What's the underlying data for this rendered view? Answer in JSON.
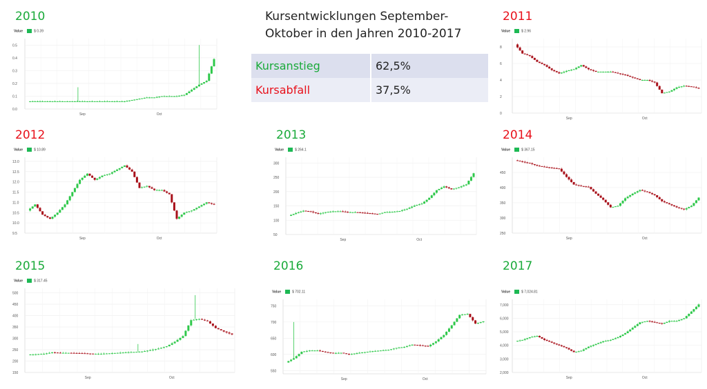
{
  "header": {
    "title_line1": "Kursentwicklungen September-",
    "title_line2": "Oktober in den Jahren 2010-2017"
  },
  "stats": [
    {
      "label": "Kursanstieg",
      "value": "62,5%",
      "color": "#1aaa3a"
    },
    {
      "label": "Kursabfall",
      "value": "37,5%",
      "color": "#e8101a"
    }
  ],
  "colors": {
    "up": "#2ec84a",
    "down": "#a8101a",
    "rise_label": "#1aaa3a",
    "fall_label": "#e8101a"
  },
  "legend_label": "Value",
  "months": [
    "Sep",
    "Oct"
  ],
  "chart_data": [
    {
      "type": "candlestick",
      "year": "2010",
      "trend": "up",
      "current": "$ 0.39",
      "yticks": [
        "0.0",
        "0.1",
        "0.2",
        "0.3",
        "0.4",
        "0.5"
      ],
      "ylim": [
        0,
        0.55
      ],
      "x": [
        0,
        4,
        8,
        12,
        16,
        20,
        24,
        28,
        32,
        36,
        40,
        44,
        48,
        52,
        56,
        60,
        64,
        68,
        72,
        76,
        80,
        84,
        88,
        92,
        96,
        100
      ],
      "y": [
        0.06,
        0.06,
        0.06,
        0.06,
        0.06,
        0.06,
        0.06,
        0.06,
        0.06,
        0.06,
        0.06,
        0.06,
        0.06,
        0.06,
        0.07,
        0.08,
        0.09,
        0.09,
        0.1,
        0.1,
        0.1,
        0.11,
        0.15,
        0.19,
        0.22,
        0.39
      ],
      "spikes": [
        {
          "x": 27,
          "value": 0.17
        },
        {
          "x": 92,
          "value": 0.5
        }
      ]
    },
    {
      "type": "candlestick",
      "year": "2011",
      "trend": "down",
      "current": "$ 2.96",
      "yticks": [
        "0",
        "2",
        "4",
        "6",
        "8"
      ],
      "ylim": [
        0,
        9
      ],
      "x": [
        0,
        4,
        8,
        12,
        16,
        20,
        24,
        28,
        32,
        36,
        40,
        44,
        48,
        52,
        56,
        60,
        64,
        68,
        72,
        76,
        80,
        84,
        88,
        92,
        96,
        100
      ],
      "y": [
        8.3,
        7.2,
        6.9,
        6.2,
        5.8,
        5.2,
        4.8,
        5.1,
        5.3,
        5.8,
        5.3,
        5.0,
        5.0,
        5.0,
        4.8,
        4.6,
        4.3,
        4.0,
        4.0,
        3.7,
        2.4,
        2.6,
        3.1,
        3.3,
        3.2,
        2.96
      ]
    },
    {
      "type": "candlestick",
      "year": "2012",
      "trend": "down",
      "current": "$ 10.89",
      "yticks": [
        "9.5",
        "10.0",
        "10.5",
        "11.0",
        "11.5",
        "12.0",
        "12.5",
        "13.0"
      ],
      "ylim": [
        9.5,
        13.2
      ],
      "x": [
        0,
        4,
        8,
        12,
        16,
        20,
        24,
        28,
        32,
        36,
        40,
        44,
        48,
        52,
        56,
        60,
        64,
        68,
        72,
        76,
        80,
        84,
        88,
        92,
        96,
        100
      ],
      "y": [
        10.6,
        10.9,
        10.4,
        10.2,
        10.5,
        10.9,
        11.5,
        12.1,
        12.4,
        12.1,
        12.3,
        12.4,
        12.6,
        12.8,
        12.5,
        11.7,
        11.8,
        11.6,
        11.6,
        11.4,
        10.2,
        10.5,
        10.6,
        10.8,
        11.0,
        10.89
      ]
    },
    {
      "type": "candlestick",
      "year": "2013",
      "trend": "up",
      "current": "$ 264.1",
      "yticks": [
        "50",
        "100",
        "150",
        "200",
        "250",
        "300"
      ],
      "ylim": [
        50,
        320
      ],
      "x": [
        0,
        4,
        8,
        12,
        16,
        20,
        24,
        28,
        32,
        36,
        40,
        44,
        48,
        52,
        56,
        60,
        64,
        68,
        72,
        76,
        80,
        84,
        88,
        92,
        96,
        100
      ],
      "y": [
        115,
        125,
        133,
        130,
        122,
        128,
        131,
        131,
        128,
        128,
        126,
        124,
        121,
        128,
        129,
        132,
        140,
        151,
        158,
        178,
        205,
        218,
        208,
        215,
        225,
        264
      ]
    },
    {
      "type": "candlestick",
      "year": "2014",
      "trend": "down",
      "current": "$ 367.15",
      "yticks": [
        "250",
        "300",
        "350",
        "400",
        "450"
      ],
      "ylim": [
        250,
        500
      ],
      "x": [
        0,
        4,
        8,
        12,
        16,
        20,
        24,
        28,
        32,
        36,
        40,
        44,
        48,
        52,
        56,
        60,
        64,
        68,
        72,
        76,
        80,
        84,
        88,
        92,
        96,
        100
      ],
      "y": [
        490,
        485,
        480,
        472,
        468,
        465,
        462,
        435,
        410,
        405,
        402,
        380,
        360,
        335,
        340,
        365,
        380,
        392,
        385,
        375,
        355,
        345,
        335,
        328,
        340,
        367
      ]
    },
    {
      "type": "candlestick",
      "year": "2015",
      "trend": "up",
      "current": "$ 317.45",
      "yticks": [
        "150",
        "200",
        "250",
        "300",
        "350",
        "400",
        "450",
        "500"
      ],
      "ylim": [
        150,
        520
      ],
      "x": [
        0,
        4,
        8,
        12,
        16,
        20,
        24,
        28,
        32,
        36,
        40,
        44,
        48,
        52,
        56,
        60,
        64,
        68,
        72,
        76,
        80,
        84,
        88,
        92,
        96,
        100
      ],
      "y": [
        228,
        230,
        232,
        238,
        236,
        236,
        235,
        234,
        232,
        232,
        234,
        236,
        238,
        240,
        242,
        248,
        255,
        265,
        285,
        310,
        380,
        385,
        375,
        345,
        330,
        317
      ],
      "spikes": [
        {
          "x": 82,
          "value": 490
        },
        {
          "x": 54,
          "value": 275
        }
      ]
    },
    {
      "type": "candlestick",
      "year": "2016",
      "trend": "up",
      "current": "$ 702.11",
      "yticks": [
        "550",
        "600",
        "650",
        "700",
        "750"
      ],
      "ylim": [
        540,
        770
      ],
      "x": [
        0,
        4,
        8,
        12,
        16,
        20,
        24,
        28,
        32,
        36,
        40,
        44,
        48,
        52,
        56,
        60,
        64,
        68,
        72,
        76,
        80,
        84,
        88,
        92,
        96,
        100
      ],
      "y": [
        575,
        588,
        608,
        612,
        612,
        607,
        604,
        605,
        600,
        604,
        607,
        610,
        612,
        614,
        620,
        623,
        630,
        628,
        625,
        640,
        660,
        690,
        722,
        725,
        695,
        702
      ],
      "spikes": [
        {
          "x": 4,
          "value": 700
        }
      ]
    },
    {
      "type": "candlestick",
      "year": "2017",
      "trend": "up",
      "current": "$ 7,024.81",
      "yticks": [
        "2,000",
        "3,000",
        "4,000",
        "5,000",
        "6,000",
        "7,000"
      ],
      "ylim": [
        2000,
        7400
      ],
      "x": [
        0,
        4,
        8,
        12,
        16,
        20,
        24,
        28,
        32,
        36,
        40,
        44,
        48,
        52,
        56,
        60,
        64,
        68,
        72,
        76,
        80,
        84,
        88,
        92,
        96,
        100
      ],
      "y": [
        4300,
        4400,
        4600,
        4700,
        4400,
        4200,
        4000,
        3800,
        3500,
        3600,
        3900,
        4100,
        4300,
        4400,
        4600,
        4900,
        5300,
        5700,
        5800,
        5700,
        5600,
        5800,
        5800,
        6000,
        6500,
        7024
      ]
    }
  ]
}
